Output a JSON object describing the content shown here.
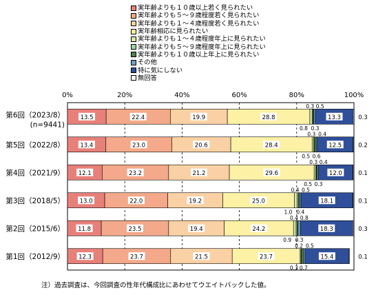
{
  "chart_data": {
    "type": "bar",
    "orientation": "horizontal",
    "stacked": true,
    "percent_axis": true,
    "xlim": [
      0,
      100
    ],
    "x_ticks": [
      "0%",
      "20%",
      "40%",
      "60%",
      "80%",
      "100%"
    ],
    "categories": [
      [
        "第6回（2023/8）",
        "(n=9441)"
      ],
      [
        "第5回（2022/8）"
      ],
      [
        "第4回（2021/9）"
      ],
      [
        "第3回（2018/5）"
      ],
      [
        "第2回（2015/6）"
      ],
      [
        "第1回（2012/9）"
      ]
    ],
    "series": [
      {
        "name": "実年齢よりも１０歳以上若く見られたい",
        "color": "#e8807a",
        "values": [
          13.5,
          13.4,
          12.1,
          13.0,
          11.8,
          12.3
        ]
      },
      {
        "name": "実年齢よりも５～９歳程度若く見られたい",
        "color": "#f3a98a",
        "values": [
          22.4,
          23.0,
          23.2,
          22.0,
          23.5,
          23.7
        ]
      },
      {
        "name": "実年齢よりも１～４歳程度若く見られたい",
        "color": "#fad1a4",
        "values": [
          19.9,
          20.6,
          21.2,
          19.2,
          19.4,
          21.5
        ]
      },
      {
        "name": "実年齢相応に見られたい",
        "color": "#fdf1a6",
        "values": [
          28.8,
          28.4,
          29.6,
          25.0,
          24.2,
          23.7
        ]
      },
      {
        "name": "実年齢よりも１～４歳程度年上に見られたい",
        "color": "#d9e7a6",
        "values": [
          0.8,
          0.5,
          0.5,
          1.0,
          0.9,
          0.3
        ]
      },
      {
        "name": "実年齢よりも５～９歳程度年上に見られたい",
        "color": "#9fd2a2",
        "values": [
          0.3,
          0.3,
          0.3,
          0.4,
          0.4,
          0.2
        ]
      },
      {
        "name": "実年齢よりも１０歳以上年上に見られたい",
        "color": "#4f7f4d",
        "values": [
          0.3,
          0.6,
          0.3,
          0.4,
          0.3,
          0.7
        ]
      },
      {
        "name": "その他",
        "color": "#6ea0c9",
        "values": [
          0.5,
          0.4,
          0.4,
          0.5,
          0.8,
          0.5
        ]
      },
      {
        "name": "特に気にしない",
        "color": "#2f4f9a",
        "values": [
          13.3,
          12.5,
          12.0,
          18.1,
          18.3,
          15.4
        ]
      },
      {
        "name": "無回答",
        "color": "#ffffff",
        "values": [
          0.3,
          0.2,
          0.1,
          0.1,
          0.3,
          0.1
        ]
      }
    ],
    "note": "注）過去調査は、今回調査の性年代構成比にあわせてウエイトバックした値。"
  }
}
